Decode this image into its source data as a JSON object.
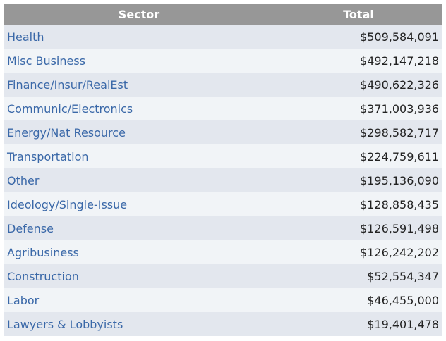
{
  "table": {
    "headers": {
      "sector": "Sector",
      "total": "Total"
    },
    "rows": [
      {
        "sector": "Health",
        "total": "$509,584,091"
      },
      {
        "sector": "Misc Business",
        "total": "$492,147,218"
      },
      {
        "sector": "Finance/Insur/RealEst",
        "total": "$490,622,326"
      },
      {
        "sector": "Communic/Electronics",
        "total": "$371,003,936"
      },
      {
        "sector": "Energy/Nat Resource",
        "total": "$298,582,717"
      },
      {
        "sector": "Transportation",
        "total": "$224,759,611"
      },
      {
        "sector": "Other",
        "total": "$195,136,090"
      },
      {
        "sector": "Ideology/Single-Issue",
        "total": "$128,858,435"
      },
      {
        "sector": "Defense",
        "total": "$126,591,498"
      },
      {
        "sector": "Agribusiness",
        "total": "$126,242,202"
      },
      {
        "sector": "Construction",
        "total": "$52,554,347"
      },
      {
        "sector": "Labor",
        "total": "$46,455,000"
      },
      {
        "sector": "Lawyers & Lobbyists",
        "total": "$19,401,478"
      }
    ]
  },
  "colors": {
    "header_bg": "#979797",
    "row_dark": "#e3e7ee",
    "row_light": "#f1f4f7",
    "link": "#3a68a8"
  }
}
